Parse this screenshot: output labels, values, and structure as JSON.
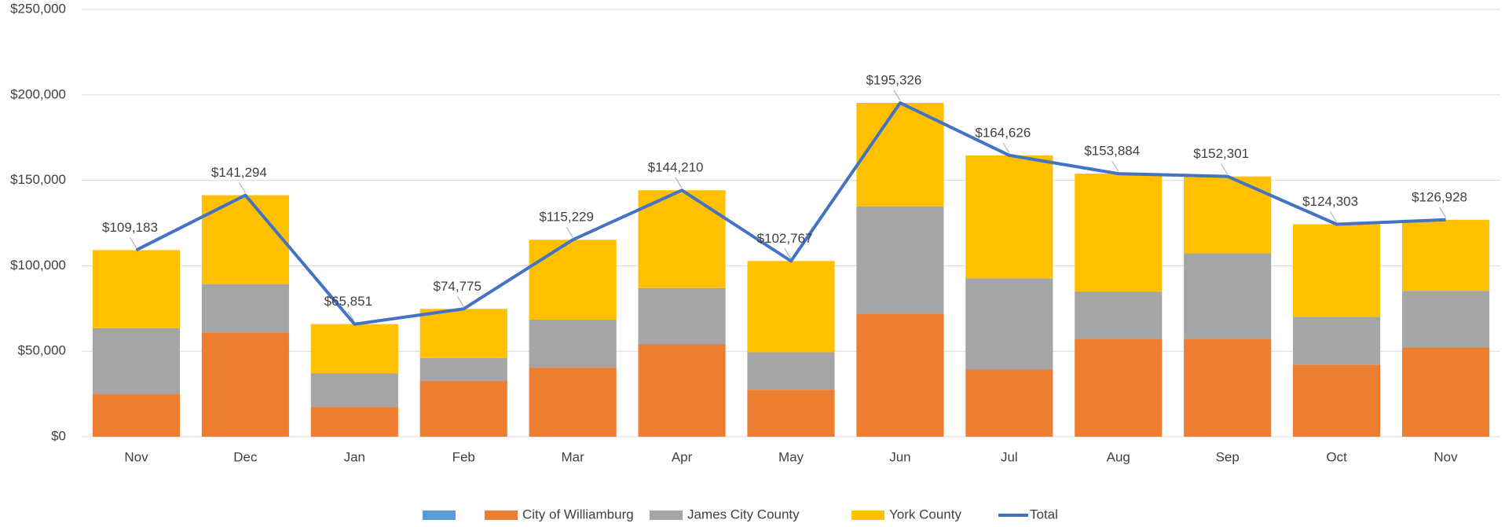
{
  "chart_data": {
    "type": "bar",
    "categories": [
      "Nov",
      "Dec",
      "Jan",
      "Feb",
      "Mar",
      "Apr",
      "May",
      "Jun",
      "Jul",
      "Aug",
      "Sep",
      "Oct",
      "Nov"
    ],
    "series": [
      {
        "name": "City of Williamburg",
        "color": "#ed7d31",
        "values": [
          25000,
          61000,
          17400,
          32600,
          40400,
          54000,
          27500,
          72000,
          39300,
          57300,
          57300,
          42100,
          52200
        ]
      },
      {
        "name": "James City County",
        "color": "#a5a5a5",
        "values": [
          38500,
          28300,
          19600,
          13400,
          28100,
          33000,
          21900,
          62800,
          53400,
          27500,
          50000,
          28100,
          33200
        ]
      },
      {
        "name": "York County",
        "color": "#ffc000",
        "values": [
          45700,
          52000,
          28900,
          28800,
          46700,
          57200,
          53400,
          60500,
          71900,
          69100,
          45000,
          54100,
          41500
        ]
      },
      {
        "name": "Total",
        "type": "line",
        "color": "#4472c4",
        "values": [
          109183,
          141294,
          65851,
          74775,
          115229,
          144210,
          102767,
          195326,
          164626,
          153884,
          152301,
          124303,
          126928
        ],
        "value_labels": [
          "$109,183",
          "$141,294",
          "$65,851",
          "$74,775",
          "$115,229",
          "$144,210",
          "$102,767",
          "$195,326",
          "$164,626",
          "$153,884",
          "$152,301",
          "$124,303",
          "$126,928"
        ]
      }
    ],
    "ylim": [
      0,
      250000
    ],
    "yticks": [
      {
        "value": 0,
        "label": "$0"
      },
      {
        "value": 50000,
        "label": "$50,000"
      },
      {
        "value": 100000,
        "label": "$100,000"
      },
      {
        "value": 150000,
        "label": "$150,000"
      },
      {
        "value": 200000,
        "label": "$200,000"
      },
      {
        "value": 250000,
        "label": "$250,000"
      }
    ],
    "grid": true,
    "legend": "bottom"
  }
}
